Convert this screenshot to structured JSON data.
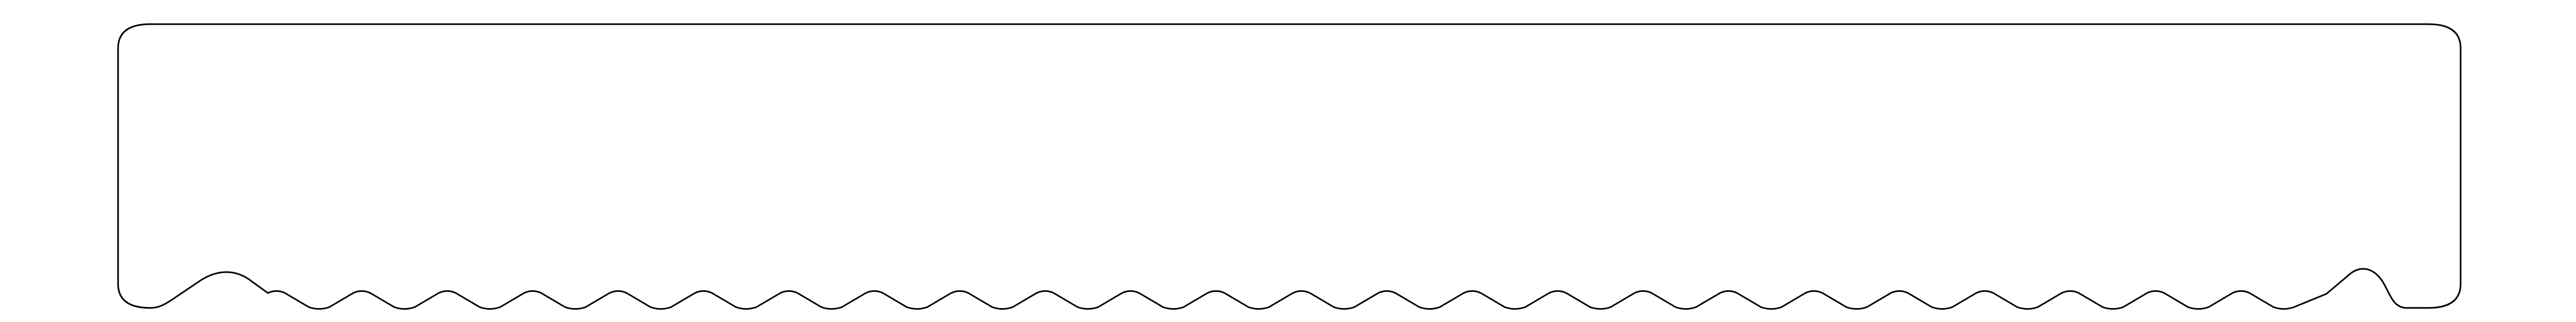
{
  "shape": {
    "kind": "rounded-rectangle-with-wavy-bottom-edge",
    "wave_count": 24,
    "outline_color": "#000000",
    "fill_color": "#ffffff"
  }
}
